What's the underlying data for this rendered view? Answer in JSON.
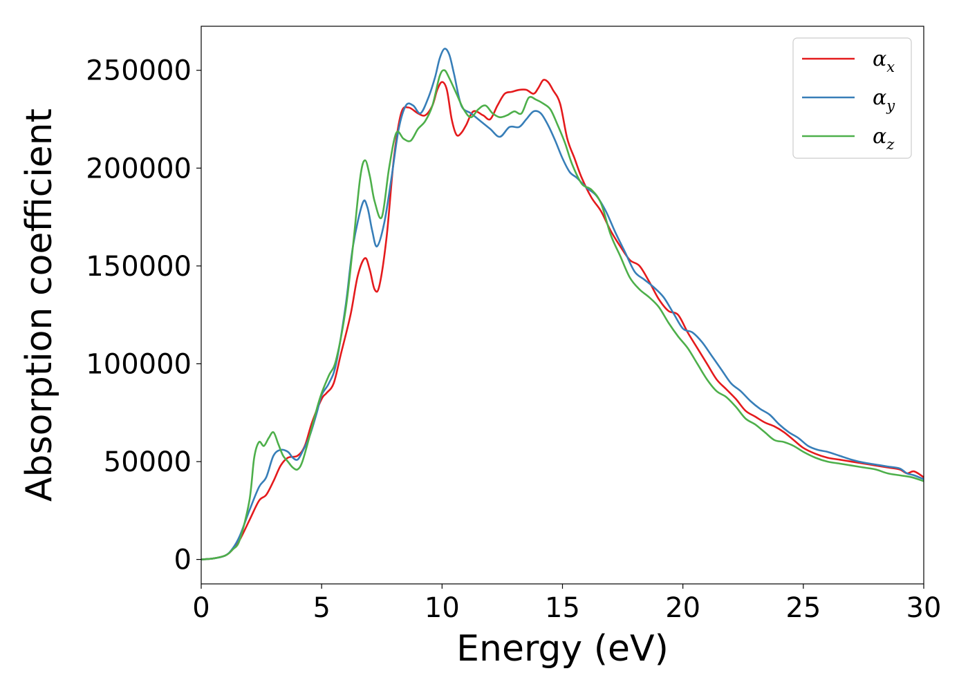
{
  "chart_data": {
    "type": "line",
    "xlabel": "Energy (eV)",
    "ylabel": "Absorption coefficient",
    "xlim": [
      0,
      30
    ],
    "ylim": [
      -12500,
      272500
    ],
    "xticks": [
      0,
      5,
      10,
      15,
      20,
      25,
      30
    ],
    "xtick_labels": [
      "0",
      "5",
      "10",
      "15",
      "20",
      "25",
      "30"
    ],
    "yticks": [
      0,
      50000,
      100000,
      150000,
      200000,
      250000
    ],
    "ytick_labels": [
      "0",
      "50000",
      "100000",
      "150000",
      "200000",
      "250000"
    ],
    "grid": false,
    "legend_position": "top-right",
    "series": [
      {
        "name": "α",
        "subscript": "x",
        "color": "#e41a1c",
        "x": [
          0,
          0.5,
          1,
          1.3,
          1.6,
          2,
          2.4,
          2.7,
          3,
          3.3,
          3.6,
          4,
          4.3,
          4.6,
          5,
          5.2,
          5.5,
          5.8,
          6.2,
          6.5,
          6.8,
          7,
          7.2,
          7.4,
          7.7,
          8,
          8.3,
          8.6,
          9,
          9.3,
          9.6,
          9.8,
          10,
          10.2,
          10.4,
          10.6,
          10.8,
          11,
          11.3,
          11.7,
          12,
          12.3,
          12.6,
          12.9,
          13.2,
          13.5,
          13.8,
          14,
          14.2,
          14.4,
          14.6,
          14.9,
          15.2,
          15.5,
          15.8,
          16.2,
          16.6,
          17,
          17.4,
          17.8,
          18.2,
          18.6,
          19,
          19.4,
          19.8,
          20.2,
          20.6,
          21,
          21.4,
          21.8,
          22.2,
          22.6,
          23,
          23.4,
          23.8,
          24.2,
          24.6,
          25,
          25.5,
          26,
          26.5,
          27,
          27.5,
          28,
          28.5,
          29,
          29.3,
          29.6,
          30
        ],
        "y": [
          0,
          500,
          2000,
          5000,
          10000,
          20000,
          30000,
          33000,
          40000,
          48000,
          52000,
          53000,
          58000,
          70000,
          82000,
          85000,
          90000,
          105000,
          125000,
          145000,
          154000,
          148000,
          138000,
          140000,
          165000,
          205000,
          228000,
          231000,
          228000,
          227000,
          232000,
          240000,
          244000,
          240000,
          225000,
          217000,
          218000,
          222000,
          229000,
          227000,
          225000,
          232000,
          238000,
          239000,
          240000,
          240000,
          238000,
          241000,
          245000,
          244000,
          240000,
          233000,
          215000,
          205000,
          195000,
          185000,
          178000,
          168000,
          160000,
          153000,
          150000,
          142000,
          133000,
          127000,
          125000,
          116000,
          108000,
          100000,
          92000,
          87000,
          82000,
          76000,
          73000,
          70000,
          68000,
          65000,
          61000,
          57000,
          54000,
          52000,
          51000,
          50000,
          49000,
          48000,
          47000,
          46000,
          44000,
          45000,
          42000
        ]
      },
      {
        "name": "α",
        "subscript": "y",
        "color": "#377eb8",
        "x": [
          0,
          0.5,
          1,
          1.3,
          1.6,
          2,
          2.4,
          2.7,
          3,
          3.3,
          3.6,
          3.8,
          4,
          4.2,
          4.5,
          4.8,
          5,
          5.3,
          5.6,
          6,
          6.3,
          6.7,
          6.9,
          7.1,
          7.3,
          7.6,
          7.9,
          8.2,
          8.5,
          8.8,
          9.1,
          9.4,
          9.7,
          9.9,
          10.1,
          10.3,
          10.5,
          10.8,
          11.2,
          11.6,
          12,
          12.4,
          12.8,
          13.2,
          13.5,
          13.8,
          14.1,
          14.4,
          14.7,
          15,
          15.3,
          15.6,
          16,
          16.4,
          16.8,
          17.2,
          17.6,
          18,
          18.4,
          18.8,
          19.2,
          19.6,
          20,
          20.4,
          20.8,
          21.2,
          21.6,
          22,
          22.4,
          22.8,
          23.2,
          23.6,
          24,
          24.4,
          24.8,
          25.2,
          25.6,
          26,
          26.5,
          27,
          27.5,
          28,
          28.5,
          29,
          29.3,
          29.6,
          30
        ],
        "y": [
          0,
          500,
          2000,
          5500,
          12000,
          25000,
          37000,
          42000,
          53000,
          56000,
          55000,
          52000,
          51000,
          55000,
          63000,
          75000,
          84000,
          90000,
          100000,
          130000,
          160000,
          182000,
          180000,
          168000,
          160000,
          172000,
          195000,
          220000,
          232000,
          232000,
          228000,
          235000,
          246000,
          256000,
          261000,
          258000,
          248000,
          232000,
          228000,
          224000,
          220000,
          216000,
          221000,
          221000,
          225000,
          229000,
          228000,
          222000,
          214000,
          205000,
          198000,
          195000,
          190000,
          186000,
          178000,
          167000,
          157000,
          147000,
          143000,
          139000,
          134000,
          126000,
          118000,
          116000,
          111000,
          104000,
          97000,
          90000,
          86000,
          81000,
          77000,
          74000,
          69000,
          65000,
          62000,
          58000,
          56000,
          55000,
          53000,
          51000,
          49500,
          48500,
          47500,
          46500,
          44000,
          43000,
          41000
        ]
      },
      {
        "name": "α",
        "subscript": "z",
        "color": "#4daf4a",
        "x": [
          0,
          0.5,
          1,
          1.3,
          1.6,
          2,
          2.2,
          2.4,
          2.6,
          2.8,
          3,
          3.2,
          3.4,
          3.6,
          3.8,
          4,
          4.2,
          4.5,
          4.8,
          5,
          5.3,
          5.6,
          6,
          6.3,
          6.6,
          6.8,
          7,
          7.2,
          7.5,
          7.8,
          8.1,
          8.4,
          8.7,
          9,
          9.3,
          9.6,
          9.9,
          10.1,
          10.3,
          10.6,
          10.9,
          11.2,
          11.5,
          11.8,
          12.1,
          12.4,
          12.7,
          13,
          13.3,
          13.6,
          13.9,
          14.2,
          14.5,
          14.8,
          15.1,
          15.4,
          15.8,
          16.2,
          16.6,
          17,
          17.4,
          17.8,
          18.2,
          18.6,
          19,
          19.4,
          19.8,
          20.2,
          20.6,
          21,
          21.4,
          21.8,
          22.2,
          22.6,
          23,
          23.4,
          23.8,
          24.2,
          24.6,
          25,
          25.5,
          26,
          26.5,
          27,
          27.5,
          28,
          28.5,
          29,
          29.5,
          30
        ],
        "y": [
          0,
          500,
          2000,
          5000,
          10000,
          30000,
          52000,
          60000,
          58000,
          62000,
          65000,
          59000,
          53000,
          50000,
          47000,
          46000,
          50000,
          63000,
          77000,
          85000,
          94000,
          102000,
          128000,
          160000,
          195000,
          204000,
          196000,
          183000,
          175000,
          200000,
          218000,
          215000,
          214000,
          220000,
          224000,
          232000,
          247000,
          250000,
          246000,
          238000,
          230000,
          226000,
          230000,
          232000,
          228000,
          226000,
          227000,
          229000,
          228000,
          236000,
          235000,
          233000,
          230000,
          222000,
          213000,
          202000,
          192000,
          189000,
          182000,
          166000,
          155000,
          144000,
          138000,
          134000,
          129000,
          121000,
          114000,
          108000,
          100000,
          92000,
          86000,
          83000,
          78000,
          72000,
          69000,
          65000,
          61000,
          60000,
          58000,
          55000,
          52000,
          50000,
          49000,
          48000,
          47000,
          46000,
          44000,
          43000,
          42000,
          40000
        ]
      }
    ]
  }
}
